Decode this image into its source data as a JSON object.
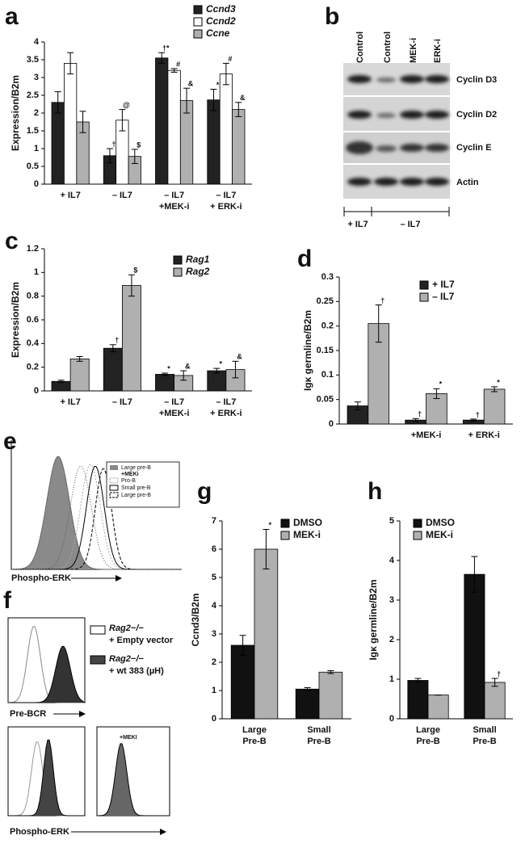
{
  "chart_data": [
    {
      "type": "bar",
      "panel": "a",
      "ylabel": "Expression/B2m",
      "categories": [
        [
          "+ IL7"
        ],
        [
          "– IL7"
        ],
        [
          "– IL7",
          "+MEK-i"
        ],
        [
          "– IL7",
          "+ ERK-i"
        ]
      ],
      "ylim": [
        0,
        4
      ],
      "yticks": [
        0,
        0.5,
        1,
        1.5,
        2,
        2.5,
        3,
        3.5,
        4
      ],
      "series": [
        {
          "name": "Ccnd3",
          "color": "#222222",
          "values": [
            2.3,
            0.8,
            3.55,
            2.37
          ],
          "errors": [
            0.3,
            0.2,
            0.15,
            0.3
          ],
          "annotations": [
            null,
            "†",
            "†*",
            "*"
          ]
        },
        {
          "name": "Ccnd2",
          "color": "#ffffff",
          "values": [
            3.4,
            1.8,
            3.2,
            3.1
          ],
          "errors": [
            0.3,
            0.3,
            0.05,
            0.3
          ],
          "annotations": [
            null,
            "@",
            "#",
            "#"
          ]
        },
        {
          "name": "Ccne",
          "color": "#b0b0b0",
          "values": [
            1.75,
            0.78,
            2.35,
            2.1
          ],
          "errors": [
            0.3,
            0.2,
            0.35,
            0.2
          ],
          "annotations": [
            null,
            "$",
            "&",
            "&"
          ]
        }
      ]
    },
    {
      "type": "bar",
      "panel": "c",
      "ylabel": "Expression/B2m",
      "categories": [
        [
          "+ IL7"
        ],
        [
          "– IL7"
        ],
        [
          "– IL7",
          "+MEK-i"
        ],
        [
          "– IL7",
          "+ ERK-i"
        ]
      ],
      "ylim": [
        0,
        1.2
      ],
      "yticks": [
        0,
        0.2,
        0.4,
        0.6,
        0.8,
        1,
        1.2
      ],
      "series": [
        {
          "name": "Rag1",
          "color": "#222222",
          "values": [
            0.08,
            0.36,
            0.14,
            0.17
          ],
          "errors": [
            0.01,
            0.03,
            0.01,
            0.02
          ],
          "annotations": [
            null,
            "†",
            "*",
            "*"
          ]
        },
        {
          "name": "Rag2",
          "color": "#b0b0b0",
          "values": [
            0.27,
            0.89,
            0.13,
            0.18
          ],
          "errors": [
            0.02,
            0.09,
            0.04,
            0.07
          ],
          "annotations": [
            null,
            "$",
            "&",
            "&"
          ]
        }
      ]
    },
    {
      "type": "bar",
      "panel": "d",
      "ylabel": "Igκ germline/B2m",
      "categories": [
        null,
        [
          "+MEK-i"
        ],
        [
          "+ ERK-i"
        ]
      ],
      "ylim": [
        0,
        0.3
      ],
      "yticks": [
        0,
        0.05,
        0.1,
        0.15,
        0.2,
        0.25,
        0.3
      ],
      "series": [
        {
          "name": "+ IL7",
          "color": "#222222",
          "values": [
            0.037,
            0.008,
            0.008
          ],
          "errors": [
            0.008,
            0.003,
            0.002
          ],
          "annotations": [
            null,
            "†",
            "†"
          ]
        },
        {
          "name": "– IL7",
          "color": "#b0b0b0",
          "values": [
            0.205,
            0.062,
            0.071
          ],
          "errors": [
            0.038,
            0.01,
            0.005
          ],
          "annotations": [
            "†",
            "*",
            "*"
          ]
        }
      ]
    },
    {
      "type": "bar",
      "panel": "g",
      "ylabel": "Ccnd3/B2m",
      "categories": [
        [
          "Large",
          "Pre-B"
        ],
        [
          "Small",
          "Pre-B"
        ]
      ],
      "ylim": [
        0,
        7
      ],
      "yticks": [
        0,
        1,
        2,
        3,
        4,
        5,
        6,
        7
      ],
      "series": [
        {
          "name": "DMSO",
          "color": "#111111",
          "values": [
            2.6,
            1.05
          ],
          "errors": [
            0.35,
            0.05
          ],
          "annotations": [
            null,
            null
          ]
        },
        {
          "name": "MEK-i",
          "color": "#b0b0b0",
          "values": [
            6.0,
            1.65
          ],
          "errors": [
            0.7,
            0.05
          ],
          "annotations": [
            "*",
            null
          ]
        }
      ]
    },
    {
      "type": "bar",
      "panel": "h",
      "ylabel": "Igκ germline/B2m",
      "categories": [
        [
          "Large",
          "Pre-B"
        ],
        [
          "Small",
          "Pre-B"
        ]
      ],
      "ylim": [
        0,
        5
      ],
      "yticks": [
        0,
        1,
        2,
        3,
        4,
        5
      ],
      "series": [
        {
          "name": "DMSO",
          "color": "#111111",
          "values": [
            0.97,
            3.65
          ],
          "errors": [
            0.05,
            0.45
          ],
          "annotations": [
            null,
            null
          ]
        },
        {
          "name": "MEK-i",
          "color": "#b0b0b0",
          "values": [
            0.6,
            0.92
          ],
          "errors": [
            0,
            0.1
          ],
          "annotations": [
            null,
            "†"
          ]
        }
      ]
    }
  ],
  "blot": {
    "panel": "b",
    "lanes": [
      "Control",
      "Control",
      "MEK-i",
      "ERK-i"
    ],
    "rows": [
      "Cyclin D3",
      "Cyclin D2",
      "Cyclin E",
      "Actin"
    ],
    "groups": [
      "+ IL7",
      "– IL7"
    ]
  },
  "flow_e": {
    "panel": "e",
    "legend": [
      [
        "Large pre-B",
        "+MEKi"
      ],
      [
        "Pro-B"
      ],
      [
        "Small pre-B"
      ],
      [
        "Large pre-B"
      ]
    ],
    "xlabel": "Phospho-ERK"
  },
  "flow_f": {
    "panel": "f",
    "legend": [
      [
        "Rag2−/−",
        "+ Empty vector"
      ],
      [
        "Rag2−/−",
        "+ wt 383 (µH)"
      ]
    ],
    "xlabels": [
      "Pre-BCR",
      "Phospho-ERK"
    ],
    "inset": "+MEKI"
  }
}
